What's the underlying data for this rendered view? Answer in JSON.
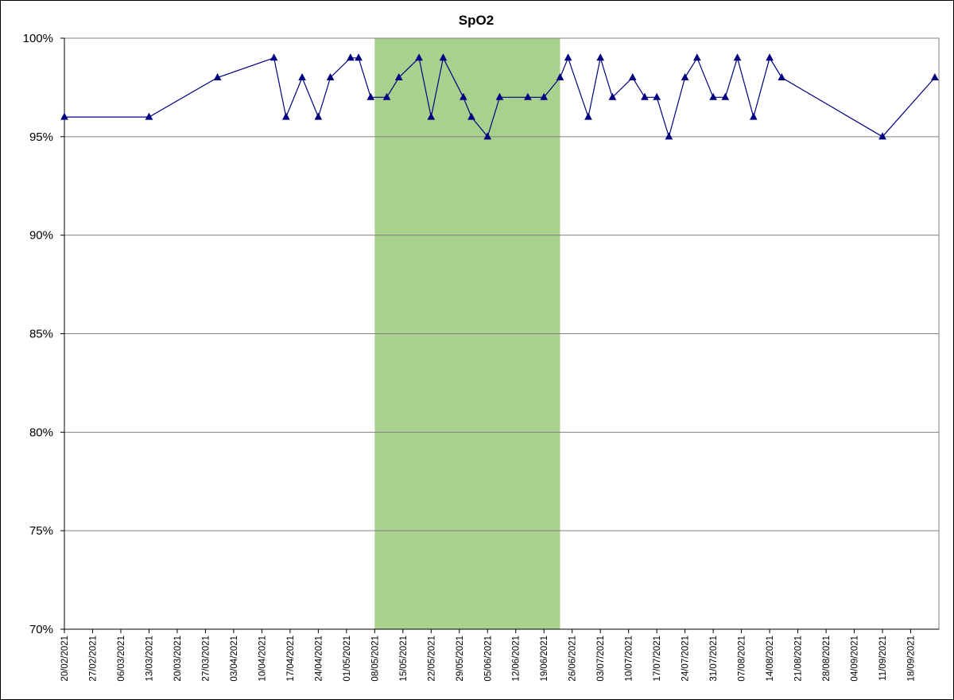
{
  "chart_data": {
    "type": "line",
    "title": "SpO2",
    "xlabel": "",
    "ylabel": "",
    "ylim": [
      0.7,
      1.0
    ],
    "yticks": [
      {
        "value": 1.0,
        "label": "100%"
      },
      {
        "value": 0.95,
        "label": "95%"
      },
      {
        "value": 0.9,
        "label": "90%"
      },
      {
        "value": 0.85,
        "label": "85%"
      },
      {
        "value": 0.8,
        "label": "80%"
      },
      {
        "value": 0.75,
        "label": "75%"
      },
      {
        "value": 0.7,
        "label": "70%"
      }
    ],
    "xlim": [
      "2021-02-20",
      "2021-09-25"
    ],
    "xticks": [
      {
        "date": "2021-02-20",
        "label": "20/02/2021"
      },
      {
        "date": "2021-02-27",
        "label": "27/02/2021"
      },
      {
        "date": "2021-03-06",
        "label": "06/03/2021"
      },
      {
        "date": "2021-03-13",
        "label": "13/03/2021"
      },
      {
        "date": "2021-03-20",
        "label": "20/03/2021"
      },
      {
        "date": "2021-03-27",
        "label": "27/03/2021"
      },
      {
        "date": "2021-04-03",
        "label": "03/04/2021"
      },
      {
        "date": "2021-04-10",
        "label": "10/04/2021"
      },
      {
        "date": "2021-04-17",
        "label": "17/04/2021"
      },
      {
        "date": "2021-04-24",
        "label": "24/04/2021"
      },
      {
        "date": "2021-05-01",
        "label": "01/05/2021"
      },
      {
        "date": "2021-05-08",
        "label": "08/05/2021"
      },
      {
        "date": "2021-05-15",
        "label": "15/05/2021"
      },
      {
        "date": "2021-05-22",
        "label": "22/05/2021"
      },
      {
        "date": "2021-05-29",
        "label": "29/05/2021"
      },
      {
        "date": "2021-06-05",
        "label": "05/06/2021"
      },
      {
        "date": "2021-06-12",
        "label": "12/06/2021"
      },
      {
        "date": "2021-06-19",
        "label": "19/06/2021"
      },
      {
        "date": "2021-06-26",
        "label": "26/06/2021"
      },
      {
        "date": "2021-07-03",
        "label": "03/07/2021"
      },
      {
        "date": "2021-07-10",
        "label": "10/07/2021"
      },
      {
        "date": "2021-07-17",
        "label": "17/07/2021"
      },
      {
        "date": "2021-07-24",
        "label": "24/07/2021"
      },
      {
        "date": "2021-07-31",
        "label": "31/07/2021"
      },
      {
        "date": "2021-08-07",
        "label": "07/08/2021"
      },
      {
        "date": "2021-08-14",
        "label": "14/08/2021"
      },
      {
        "date": "2021-08-21",
        "label": "21/08/2021"
      },
      {
        "date": "2021-08-28",
        "label": "28/08/2021"
      },
      {
        "date": "2021-09-04",
        "label": "04/09/2021"
      },
      {
        "date": "2021-09-11",
        "label": "11/09/2021"
      },
      {
        "date": "2021-09-18",
        "label": "18/09/2021"
      }
    ],
    "highlight_band": {
      "start": "2021-05-08",
      "end": "2021-06-23",
      "color": "#a9d18e"
    },
    "grid": true,
    "legend": "none",
    "series": [
      {
        "color": "#000080",
        "marker": "triangle",
        "points": [
          {
            "x": "2021-02-20",
            "y": 0.96
          },
          {
            "x": "2021-03-13",
            "y": 0.96
          },
          {
            "x": "2021-03-30",
            "y": 0.98
          },
          {
            "x": "2021-04-13",
            "y": 0.99
          },
          {
            "x": "2021-04-16",
            "y": 0.96
          },
          {
            "x": "2021-04-20",
            "y": 0.98
          },
          {
            "x": "2021-04-24",
            "y": 0.96
          },
          {
            "x": "2021-04-27",
            "y": 0.98
          },
          {
            "x": "2021-05-02",
            "y": 0.99
          },
          {
            "x": "2021-05-04",
            "y": 0.99
          },
          {
            "x": "2021-05-07",
            "y": 0.97
          },
          {
            "x": "2021-05-11",
            "y": 0.97
          },
          {
            "x": "2021-05-14",
            "y": 0.98
          },
          {
            "x": "2021-05-19",
            "y": 0.99
          },
          {
            "x": "2021-05-22",
            "y": 0.96
          },
          {
            "x": "2021-05-25",
            "y": 0.99
          },
          {
            "x": "2021-05-30",
            "y": 0.97
          },
          {
            "x": "2021-06-01",
            "y": 0.96
          },
          {
            "x": "2021-06-05",
            "y": 0.95
          },
          {
            "x": "2021-06-08",
            "y": 0.97
          },
          {
            "x": "2021-06-15",
            "y": 0.97
          },
          {
            "x": "2021-06-19",
            "y": 0.97
          },
          {
            "x": "2021-06-23",
            "y": 0.98
          },
          {
            "x": "2021-06-25",
            "y": 0.99
          },
          {
            "x": "2021-06-30",
            "y": 0.96
          },
          {
            "x": "2021-07-03",
            "y": 0.99
          },
          {
            "x": "2021-07-06",
            "y": 0.97
          },
          {
            "x": "2021-07-11",
            "y": 0.98
          },
          {
            "x": "2021-07-14",
            "y": 0.97
          },
          {
            "x": "2021-07-17",
            "y": 0.97
          },
          {
            "x": "2021-07-20",
            "y": 0.95
          },
          {
            "x": "2021-07-24",
            "y": 0.98
          },
          {
            "x": "2021-07-27",
            "y": 0.99
          },
          {
            "x": "2021-07-31",
            "y": 0.97
          },
          {
            "x": "2021-08-03",
            "y": 0.97
          },
          {
            "x": "2021-08-06",
            "y": 0.99
          },
          {
            "x": "2021-08-10",
            "y": 0.96
          },
          {
            "x": "2021-08-14",
            "y": 0.99
          },
          {
            "x": "2021-08-17",
            "y": 0.98
          },
          {
            "x": "2021-09-11",
            "y": 0.95
          },
          {
            "x": "2021-09-24",
            "y": 0.98
          }
        ]
      }
    ]
  }
}
